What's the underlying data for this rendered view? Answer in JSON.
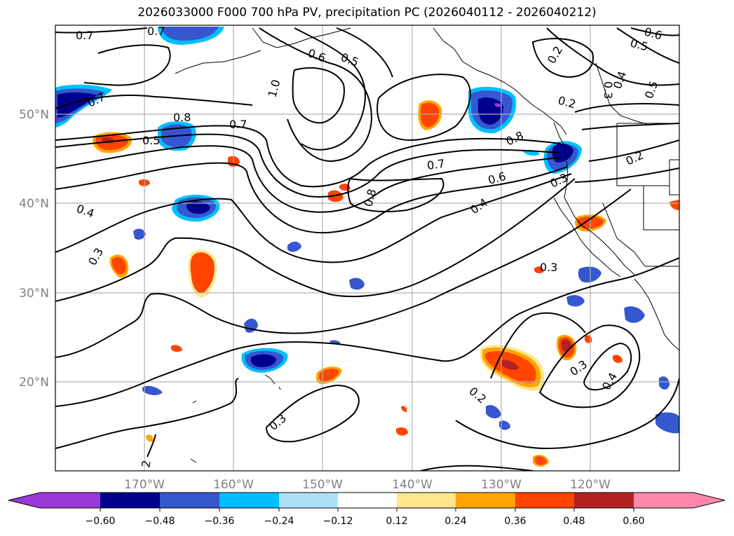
{
  "title": "2026033000 F000 700 hPa PV, precipitation PC (2026040112 - 2026040212)",
  "map": {
    "lon_range": [
      -180,
      -110
    ],
    "lat_range": [
      10,
      60
    ],
    "lat_ticks": [
      {
        "value": 50,
        "label": "50°N"
      },
      {
        "value": 40,
        "label": "40°N"
      },
      {
        "value": 30,
        "label": "30°N"
      },
      {
        "value": 20,
        "label": "20°N"
      }
    ],
    "lon_ticks": [
      {
        "value": -170,
        "label": "170°W"
      },
      {
        "value": -160,
        "label": "160°W"
      },
      {
        "value": -150,
        "label": "150°W"
      },
      {
        "value": -140,
        "label": "140°W"
      },
      {
        "value": -130,
        "label": "130°W"
      },
      {
        "value": -120,
        "label": "120°W"
      }
    ],
    "grid": true
  },
  "pv_contour_labels": [
    "0.7",
    "0.7",
    "0.6",
    "0.5",
    "0.6",
    "0.5",
    "0.2",
    "0.3",
    "0.4",
    "0.5",
    "1.0",
    "0.7",
    "0.2",
    "0.8",
    "0.5",
    "0.7",
    "0.8",
    "0.7",
    "0.2",
    "0.6",
    "0.3",
    "0.8",
    "0.4",
    "0.4",
    "0.3",
    "0.3",
    "0.3",
    "0.4",
    "0.2",
    "0.3",
    "2"
  ],
  "colorbar": {
    "ticks": [
      "−0.60",
      "−0.48",
      "−0.36",
      "−0.24",
      "−0.12",
      "0.12",
      "0.24",
      "0.36",
      "0.48",
      "0.60"
    ],
    "colors": [
      "#9b38d8",
      "#00008f",
      "#3557cf",
      "#00bfff",
      "#aee0fa",
      "#ffffff",
      "#ffe68c",
      "#ffa500",
      "#ff4500",
      "#b22222",
      "#ff88aa"
    ]
  }
}
